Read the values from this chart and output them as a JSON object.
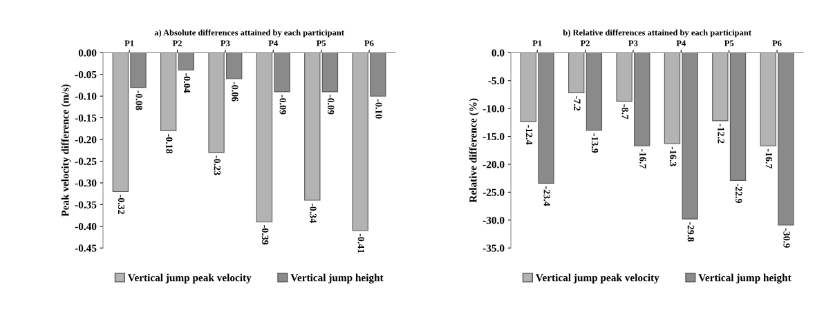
{
  "chart_data": [
    {
      "type": "bar",
      "title": "a) Absolute differences attained by each participant",
      "ylabel": "Peak velocity difference (m/s)",
      "categories": [
        "P1",
        "P2",
        "P3",
        "P4",
        "P5",
        "P6"
      ],
      "series": [
        {
          "name": "Vertical jump peak velocity",
          "color": "#b3b3b3",
          "values": [
            -0.32,
            -0.18,
            -0.23,
            -0.39,
            -0.34,
            -0.41
          ],
          "value_labels": [
            "-0.32",
            "-0.18",
            "-0.23",
            "-0.39",
            "-0.34",
            "-0.41"
          ]
        },
        {
          "name": "Vertical jump height",
          "color": "#8a8a8a",
          "values": [
            -0.08,
            -0.04,
            -0.06,
            -0.09,
            -0.09,
            -0.1
          ],
          "value_labels": [
            "-0.08",
            "-0.04",
            "-0.06",
            "-0.09",
            "-0.09",
            "-0.10"
          ]
        }
      ],
      "ylim": [
        -0.45,
        0
      ],
      "yticks": [
        {
          "value": -0.45,
          "label": "-0.45"
        },
        {
          "value": -0.4,
          "label": "-0.40"
        },
        {
          "value": -0.35,
          "label": "-0.35"
        },
        {
          "value": -0.3,
          "label": "-0.30"
        },
        {
          "value": -0.25,
          "label": "-0.25"
        },
        {
          "value": -0.2,
          "label": "-0.20"
        },
        {
          "value": -0.15,
          "label": "-0.15"
        },
        {
          "value": -0.1,
          "label": "-0.10"
        },
        {
          "value": -0.05,
          "label": "-0.05"
        },
        {
          "value": 0,
          "label": "0.00"
        }
      ],
      "grid": false,
      "legend": "bottom"
    },
    {
      "type": "bar",
      "title": "b) Relative differences attained by each participant",
      "ylabel": "Relative difference (%)",
      "categories": [
        "P1",
        "P2",
        "P3",
        "P4",
        "P5",
        "P6"
      ],
      "series": [
        {
          "name": "Vertical jump peak velocity",
          "color": "#b3b3b3",
          "values": [
            -12.4,
            -7.2,
            -8.7,
            -16.3,
            -12.2,
            -16.7
          ],
          "value_labels": [
            "-12.4",
            "-7.2",
            "-8.7",
            "-16.3",
            "-12.2",
            "-16.7"
          ]
        },
        {
          "name": "Vertical jump height",
          "color": "#8a8a8a",
          "values": [
            -23.4,
            -13.9,
            -16.7,
            -29.8,
            -22.9,
            -30.9
          ],
          "value_labels": [
            "-23.4",
            "-13.9",
            "-16.7",
            "-29.8",
            "-22.9",
            "-30.9"
          ]
        }
      ],
      "ylim": [
        -35,
        0
      ],
      "yticks": [
        {
          "value": -35,
          "label": "-35.0"
        },
        {
          "value": -30,
          "label": "-30.0"
        },
        {
          "value": -25,
          "label": "-25.0"
        },
        {
          "value": -20,
          "label": "-20.0"
        },
        {
          "value": -15,
          "label": "-15.0"
        },
        {
          "value": -10,
          "label": "-10.0"
        },
        {
          "value": -5,
          "label": "-5.0"
        },
        {
          "value": 0,
          "label": "0.0"
        }
      ],
      "grid": false,
      "legend": "bottom"
    }
  ]
}
